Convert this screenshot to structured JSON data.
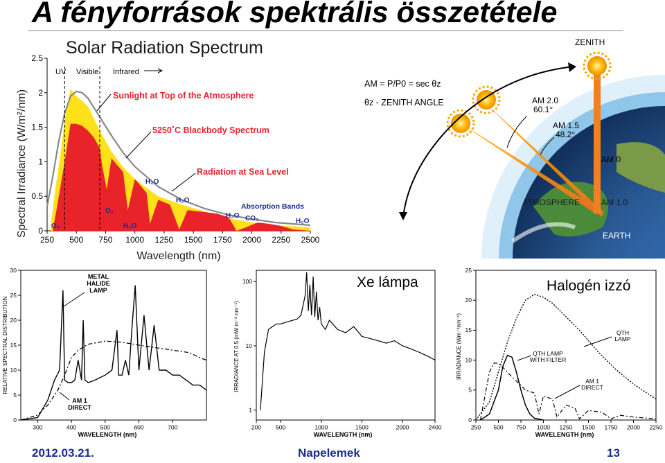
{
  "page": {
    "title": "A fényforrások spektrális összetétele",
    "footer_date": "2012.03.21.",
    "footer_center": "Napelemek",
    "footer_page": "13"
  },
  "solar": {
    "title": "Solar Radiation Spectrum",
    "ylabel": "Spectral Irradiance (W/m²/nm)",
    "xlabel": "Wavelength (nm)",
    "band_uv": "UV",
    "band_visible": "Visible",
    "band_ir": "Infrared",
    "label_top": "Sunlight at Top of the Atmosphere",
    "label_bb": "5250˚C Blackbody Spectrum",
    "label_sea": "Radiation at Sea Level",
    "label_abs": "Absorption Bands",
    "gas_o3": "O₃",
    "gas_o2": "O₂",
    "gas_h2o": "H₂O",
    "gas_co2": "CO₂"
  },
  "am": {
    "zenith": "ZENITH",
    "formula": "AM = P/P0 = sec θz",
    "angle_label": "θz - ZENITH ANGLE",
    "am20_a": "AM 2.0",
    "am20_b": "60.1°",
    "am15_a": "AM 1.5",
    "am15_b": "48.2°",
    "am0": "AM 0",
    "atmosphere": "ATMOSPHERE",
    "am10": "AM 1.0",
    "earth": "EARTH"
  },
  "metal": {
    "ylabel": "RELATIVE SPECTRAL DISTRIBUTION",
    "xlabel": "WAVELENGTH (nm)",
    "lamp_label_1": "METAL",
    "lamp_label_2": "HALIDE",
    "lamp_label_3": "LAMP",
    "am1_a": "AM 1",
    "am1_b": "DIRECT"
  },
  "xe": {
    "title": "Xe lámpa",
    "ylabel": "IRRADIANCE AT 0.5 (mW m⁻² nm⁻¹)",
    "xlabel": "WAVELENGTH (nm)"
  },
  "hal": {
    "title": "Halogén izzó",
    "ylabel": "IRRADIANCE (Wm⁻²nm⁻¹)",
    "xlabel": "WAVELENGTH (nm)",
    "qth_a": "QTH",
    "qth_b": "LAMP",
    "filter_a": "QTH LAMP",
    "filter_b": "WITH FILTER",
    "am1_a": "AM 1",
    "am1_b": "DIRECT"
  },
  "chart_data": [
    {
      "type": "area",
      "title": "Solar Radiation Spectrum",
      "xlabel": "Wavelength (nm)",
      "ylabel": "Spectral Irradiance (W/m²/nm)",
      "xlim": [
        250,
        2500
      ],
      "ylim": [
        0,
        2.5
      ],
      "xticks": [
        250,
        500,
        750,
        1000,
        1250,
        1500,
        1750,
        2000,
        2250,
        2500
      ],
      "yticks": [
        0,
        0.5,
        1,
        1.5,
        2,
        2.5
      ],
      "series": [
        {
          "name": "Sunlight at Top of the Atmosphere",
          "color": "#ffe11a",
          "x": [
            280,
            320,
            360,
            400,
            450,
            500,
            550,
            600,
            700,
            800,
            900,
            1000,
            1100,
            1200,
            1300,
            1400,
            1600,
            1800,
            2000,
            2200,
            2500
          ],
          "y": [
            0.05,
            0.6,
            1.05,
            1.6,
            2.05,
            1.95,
            1.88,
            1.8,
            1.45,
            1.15,
            0.92,
            0.75,
            0.62,
            0.5,
            0.44,
            0.38,
            0.28,
            0.18,
            0.12,
            0.08,
            0.05
          ]
        },
        {
          "name": "Radiation at Sea Level",
          "color": "#e8232a",
          "x": [
            300,
            330,
            360,
            400,
            450,
            500,
            550,
            600,
            650,
            700,
            720,
            760,
            800,
            900,
            940,
            1000,
            1100,
            1130,
            1200,
            1300,
            1380,
            1450,
            1550,
            1700,
            1800,
            1870,
            1950,
            2050,
            2150,
            2250,
            2350,
            2500
          ],
          "y": [
            0.02,
            0.3,
            0.6,
            1.0,
            1.55,
            1.55,
            1.52,
            1.45,
            1.35,
            1.2,
            0.95,
            0.6,
            1.05,
            0.85,
            0.3,
            0.75,
            0.55,
            0.1,
            0.45,
            0.38,
            0.02,
            0.3,
            0.28,
            0.25,
            0.2,
            0.0,
            0.05,
            0.12,
            0.1,
            0.07,
            0.02,
            0.0
          ]
        },
        {
          "name": "5250˚C Blackbody Spectrum",
          "color": "#888888",
          "x": [
            250,
            300,
            350,
            400,
            450,
            500,
            550,
            600,
            700,
            800,
            900,
            1000,
            1200,
            1400,
            1600,
            1800,
            2000,
            2200,
            2500
          ],
          "y": [
            0.35,
            0.8,
            1.3,
            1.7,
            1.95,
            2.02,
            2.0,
            1.92,
            1.65,
            1.38,
            1.13,
            0.93,
            0.64,
            0.45,
            0.32,
            0.23,
            0.17,
            0.12,
            0.08
          ]
        }
      ]
    },
    {
      "type": "line",
      "xlabel": "WAVELENGTH (nm)",
      "ylabel": "RELATIVE SPECTRAL DISTRIBUTION",
      "xlim": [
        250,
        800
      ],
      "ylim": [
        0,
        30
      ],
      "xticks": [
        300,
        400,
        500,
        600,
        700
      ],
      "yticks": [
        0,
        5,
        10,
        15,
        20,
        25,
        30
      ],
      "series": [
        {
          "name": "METAL HALIDE LAMP",
          "x": [
            250,
            300,
            330,
            350,
            365,
            375,
            380,
            390,
            400,
            410,
            420,
            430,
            435,
            440,
            450,
            470,
            500,
            520,
            535,
            540,
            550,
            560,
            570,
            580,
            589,
            600,
            615,
            630,
            645,
            660,
            680,
            700,
            720,
            740,
            760,
            780,
            800
          ],
          "y": [
            0,
            0.5,
            4,
            8,
            10,
            26,
            8,
            7.5,
            7.5,
            8,
            12,
            8,
            20,
            8,
            7.5,
            8,
            9,
            10,
            18,
            9,
            9,
            12,
            9,
            19,
            27,
            10,
            21,
            10,
            19,
            10,
            10,
            9,
            9,
            8,
            7,
            7,
            6
          ]
        },
        {
          "name": "AM 1 DIRECT",
          "x": [
            250,
            300,
            330,
            360,
            380,
            400,
            420,
            450,
            500,
            550,
            600,
            650,
            700,
            750,
            780,
            800
          ],
          "y": [
            0,
            1,
            3,
            6,
            9,
            12.5,
            14,
            15.2,
            15.8,
            15.6,
            15,
            14.5,
            14,
            13.5,
            12.5,
            12
          ]
        }
      ]
    },
    {
      "type": "line",
      "title": "Xe lámpa",
      "xlabel": "WAVELENGTH (nm)",
      "ylabel": "IRRADIANCE AT 0.5 (mW m⁻² nm⁻¹)",
      "xlim": [
        200,
        2400
      ],
      "ylim": [
        0.7,
        150
      ],
      "yscale": "log",
      "xticks": [
        200,
        500,
        1000,
        1500,
        2000,
        2400
      ],
      "yticks": [
        1,
        10,
        100
      ],
      "series": [
        {
          "name": "Xe",
          "x": [
            250,
            300,
            350,
            400,
            450,
            500,
            600,
            700,
            750,
            800,
            820,
            840,
            860,
            880,
            900,
            920,
            940,
            960,
            980,
            1000,
            1050,
            1100,
            1200,
            1300,
            1400,
            1500,
            1600,
            1700,
            1800,
            1900,
            2000,
            2100,
            2200,
            2300,
            2400
          ],
          "y": [
            1,
            8,
            18,
            20,
            22,
            22,
            24,
            26,
            30,
            60,
            140,
            35,
            90,
            30,
            120,
            28,
            70,
            25,
            40,
            22,
            18,
            25,
            18,
            16,
            20,
            14,
            13,
            12,
            11,
            12,
            10,
            9,
            8,
            7,
            6
          ]
        }
      ]
    },
    {
      "type": "line",
      "title": "Halogén izzó",
      "xlabel": "WAVELENGTH (nm)",
      "ylabel": "IRRADIANCE (Wm⁻²nm⁻¹)",
      "xlim": [
        250,
        2250
      ],
      "ylim": [
        0,
        25
      ],
      "xticks": [
        250,
        500,
        750,
        1000,
        1250,
        1500,
        1750,
        2000,
        2250
      ],
      "yticks": [
        0,
        5,
        10,
        15,
        20,
        25
      ],
      "series": [
        {
          "name": "QTH LAMP",
          "x": [
            250,
            400,
            500,
            600,
            700,
            800,
            900,
            1000,
            1100,
            1200,
            1400,
            1600,
            1800,
            2000,
            2250
          ],
          "y": [
            0,
            3,
            8,
            13,
            17,
            20,
            21,
            20.5,
            19.5,
            18,
            15,
            11.5,
            8.5,
            6,
            3.5
          ]
        },
        {
          "name": "QTH LAMP WITH FILTER",
          "x": [
            300,
            400,
            500,
            550,
            600,
            650,
            700,
            750,
            800,
            850,
            900,
            1000
          ],
          "y": [
            0,
            1,
            5,
            9,
            10.8,
            10.5,
            8,
            5,
            2.5,
            1,
            0.3,
            0
          ]
        },
        {
          "name": "AM 1 DIRECT",
          "x": [
            300,
            350,
            400,
            450,
            500,
            550,
            600,
            650,
            700,
            750,
            800,
            900,
            950,
            1000,
            1100,
            1150,
            1250,
            1350,
            1400,
            1500,
            1650,
            1750,
            1850,
            2000,
            2250
          ],
          "y": [
            0,
            4,
            8,
            9.5,
            9.5,
            8.8,
            8,
            7.2,
            6.5,
            5.8,
            5,
            4.5,
            1,
            4,
            3.5,
            0.5,
            2.5,
            2,
            0.2,
            1.6,
            1.3,
            0.2,
            0.8,
            0.5,
            0.2
          ]
        }
      ]
    }
  ]
}
